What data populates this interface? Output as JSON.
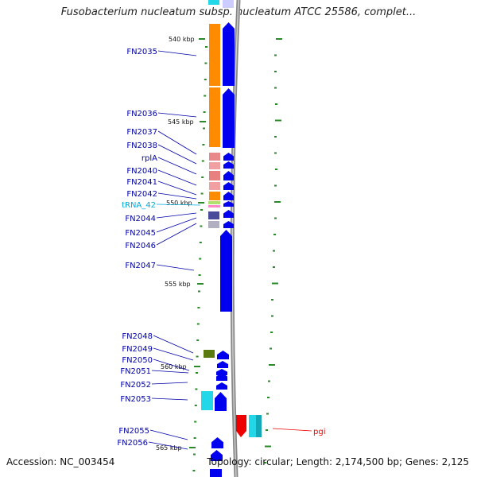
{
  "title": "Fusobacterium nucleatum subsp. nucleatum ATCC 25586, complet...",
  "footer": {
    "accession": "Accession: NC_003454",
    "topology": "Topology: circular; Length: 2,174,500 bp; Genes: 2,125"
  },
  "colors": {
    "cds": "#0000ee",
    "cog_orange": "#ff8c00",
    "cog_pink": "#e07a7a",
    "trna_label": "#00aadd",
    "rna_pink": "#ff88cc",
    "label_line": "#0000aa",
    "pgi_red": "#ee0000",
    "cyan": "#22d8e8",
    "olive": "#5a7a10",
    "gc_tick": "#2a8a2a",
    "backbone": "#888888"
  },
  "kbp_markers": [
    "540 kbp",
    "545 kbp",
    "550 kbp",
    "555 kbp",
    "560 kbp",
    "565 kbp"
  ],
  "genes_left": [
    {
      "name": "FN2035",
      "cls": "cds"
    },
    {
      "name": "FN2036",
      "cls": "cds"
    },
    {
      "name": "FN2037",
      "cls": "cds"
    },
    {
      "name": "FN2038",
      "cls": "cds"
    },
    {
      "name": "rplA",
      "cls": "cds"
    },
    {
      "name": "FN2040",
      "cls": "cds"
    },
    {
      "name": "FN2041",
      "cls": "cds"
    },
    {
      "name": "FN2042",
      "cls": "cds"
    },
    {
      "name": "tRNA_42",
      "cls": "trna"
    },
    {
      "name": "FN2044",
      "cls": "cds"
    },
    {
      "name": "FN2045",
      "cls": "cds"
    },
    {
      "name": "FN2046",
      "cls": "cds"
    },
    {
      "name": "FN2047",
      "cls": "cds"
    },
    {
      "name": "FN2048",
      "cls": "cds"
    },
    {
      "name": "FN2049",
      "cls": "cds"
    },
    {
      "name": "FN2050",
      "cls": "cds"
    },
    {
      "name": "FN2051",
      "cls": "cds"
    },
    {
      "name": "FN2052",
      "cls": "cds"
    },
    {
      "name": "FN2053",
      "cls": "cds"
    },
    {
      "name": "FN2055",
      "cls": "cds"
    },
    {
      "name": "FN2056",
      "cls": "cds"
    }
  ],
  "genes_right": [
    {
      "name": "pgi",
      "cls": "pgi"
    }
  ]
}
